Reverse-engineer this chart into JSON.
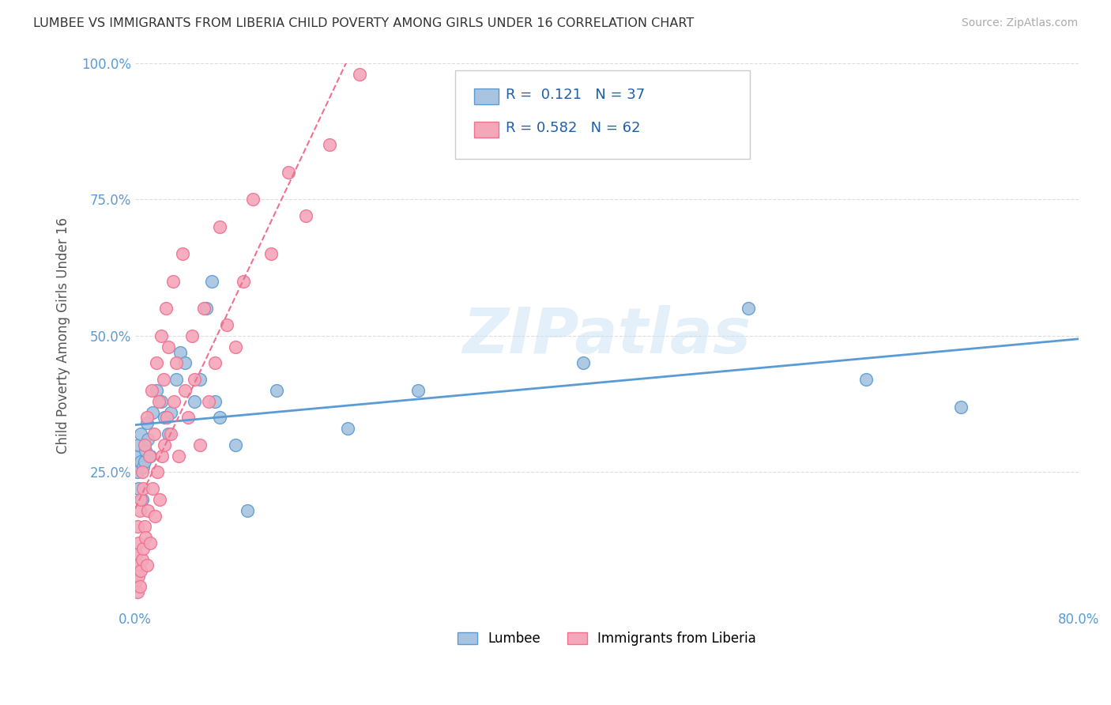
{
  "title": "LUMBEE VS IMMIGRANTS FROM LIBERIA CHILD POVERTY AMONG GIRLS UNDER 16 CORRELATION CHART",
  "source": "Source: ZipAtlas.com",
  "ylabel": "Child Poverty Among Girls Under 16",
  "watermark": "ZIPatlas",
  "xlim": [
    0.0,
    0.8
  ],
  "ylim": [
    0.0,
    1.0
  ],
  "xticks": [
    0.0,
    0.2,
    0.4,
    0.6,
    0.8
  ],
  "xticklabels": [
    "0.0%",
    "",
    "",
    "",
    "80.0%"
  ],
  "yticks": [
    0.0,
    0.25,
    0.5,
    0.75,
    1.0
  ],
  "yticklabels": [
    "",
    "25.0%",
    "50.0%",
    "75.0%",
    "100.0%"
  ],
  "color_lumbee": "#a8c4e0",
  "color_liberia": "#f4a7b9",
  "color_line_lumbee": "#5b9bd5",
  "color_line_liberia": "#f07090",
  "lumbee_x": [
    0.001,
    0.002,
    0.003,
    0.003,
    0.005,
    0.005,
    0.006,
    0.007,
    0.008,
    0.009,
    0.01,
    0.011,
    0.013,
    0.015,
    0.018,
    0.022,
    0.025,
    0.028,
    0.03,
    0.035,
    0.038,
    0.042,
    0.05,
    0.055,
    0.06,
    0.065,
    0.068,
    0.072,
    0.085,
    0.095,
    0.12,
    0.18,
    0.24,
    0.38,
    0.52,
    0.62,
    0.7
  ],
  "lumbee_y": [
    0.28,
    0.25,
    0.22,
    0.3,
    0.27,
    0.32,
    0.2,
    0.26,
    0.27,
    0.29,
    0.34,
    0.31,
    0.28,
    0.36,
    0.4,
    0.38,
    0.35,
    0.32,
    0.36,
    0.42,
    0.47,
    0.45,
    0.38,
    0.42,
    0.55,
    0.6,
    0.38,
    0.35,
    0.3,
    0.18,
    0.4,
    0.33,
    0.4,
    0.45,
    0.55,
    0.42,
    0.37
  ],
  "liberia_x": [
    0.001,
    0.001,
    0.002,
    0.002,
    0.002,
    0.003,
    0.003,
    0.004,
    0.004,
    0.005,
    0.005,
    0.006,
    0.006,
    0.007,
    0.007,
    0.008,
    0.008,
    0.009,
    0.01,
    0.01,
    0.011,
    0.012,
    0.013,
    0.014,
    0.015,
    0.016,
    0.017,
    0.018,
    0.019,
    0.02,
    0.021,
    0.022,
    0.023,
    0.024,
    0.025,
    0.026,
    0.027,
    0.028,
    0.03,
    0.032,
    0.033,
    0.035,
    0.037,
    0.04,
    0.042,
    0.045,
    0.048,
    0.05,
    0.055,
    0.058,
    0.062,
    0.068,
    0.072,
    0.078,
    0.085,
    0.092,
    0.1,
    0.115,
    0.13,
    0.145,
    0.165,
    0.19
  ],
  "liberia_y": [
    0.05,
    0.1,
    0.03,
    0.08,
    0.15,
    0.06,
    0.12,
    0.04,
    0.18,
    0.07,
    0.2,
    0.09,
    0.25,
    0.11,
    0.22,
    0.15,
    0.3,
    0.13,
    0.08,
    0.35,
    0.18,
    0.28,
    0.12,
    0.4,
    0.22,
    0.32,
    0.17,
    0.45,
    0.25,
    0.38,
    0.2,
    0.5,
    0.28,
    0.42,
    0.3,
    0.55,
    0.35,
    0.48,
    0.32,
    0.6,
    0.38,
    0.45,
    0.28,
    0.65,
    0.4,
    0.35,
    0.5,
    0.42,
    0.3,
    0.55,
    0.38,
    0.45,
    0.7,
    0.52,
    0.48,
    0.6,
    0.75,
    0.65,
    0.8,
    0.72,
    0.85,
    0.98
  ],
  "background_color": "#ffffff",
  "grid_color": "#dddddd",
  "title_color": "#333333",
  "tick_color": "#5b9bd5",
  "legend_label_color": "#1f5fa6",
  "legend_n_color": "#e05555"
}
